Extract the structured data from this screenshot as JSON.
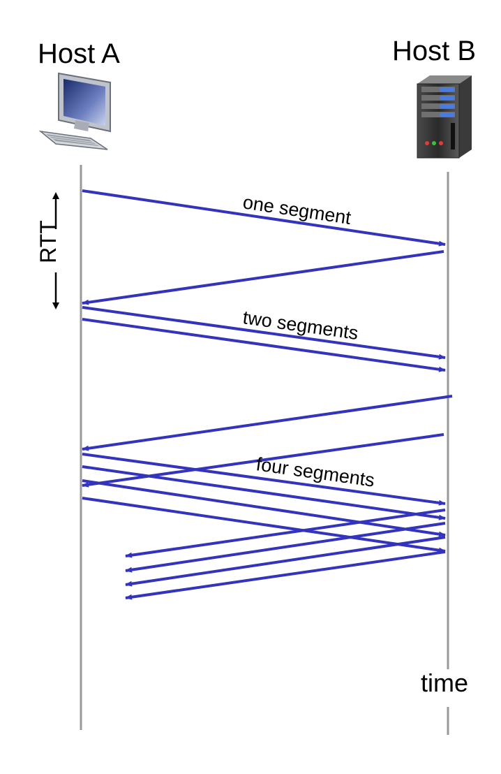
{
  "hosts": {
    "a": {
      "label": "Host A"
    },
    "b": {
      "label": "Host B"
    }
  },
  "rtt_label": "RTT",
  "time_label": "time",
  "segment_labels": {
    "one": "one segment",
    "two": "two segments",
    "four": "four segments"
  },
  "colors": {
    "arrow": "#3333bb",
    "timeline": "#999999",
    "text": "#000000"
  },
  "icons": {
    "host_a": "desktop-computer-icon",
    "host_b": "server-tower-icon"
  }
}
